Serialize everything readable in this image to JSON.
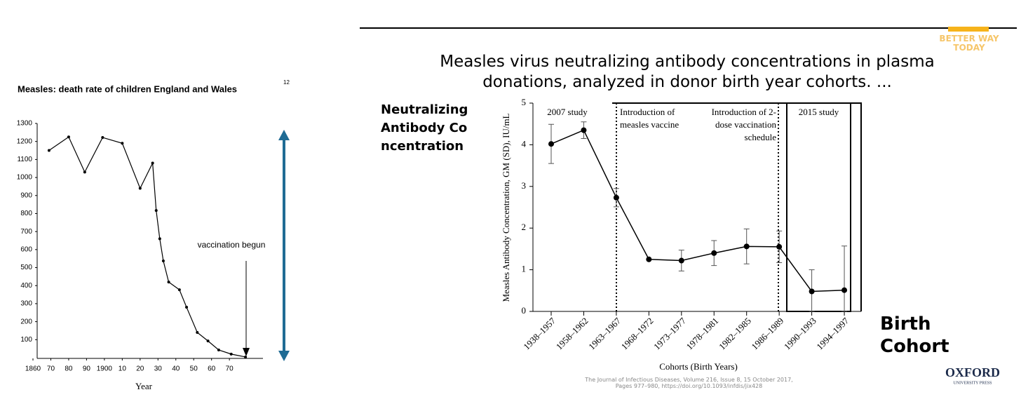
{
  "chart_data": [
    {
      "type": "line",
      "title": "Measles: death rate of children England and Wales",
      "title_note": "12",
      "x_label": "Year",
      "annotation": "vaccination begun",
      "x": [
        1869,
        1880,
        1889,
        1899,
        1910,
        1920,
        1927,
        1929,
        1931,
        1933,
        1936,
        1942,
        1946,
        1952,
        1958,
        1964,
        1971,
        1979
      ],
      "values": [
        1150,
        1225,
        1030,
        1222,
        1190,
        940,
        1080,
        817,
        660,
        537,
        420,
        377,
        280,
        140,
        93,
        43,
        20,
        4
      ],
      "color": "#000000",
      "xlim": [
        1860,
        1988
      ],
      "xticks": [
        1860,
        {
          "value": 1870,
          "label": "70"
        },
        {
          "value": 1880,
          "label": "80"
        },
        {
          "value": 1890,
          "label": "90"
        },
        1900,
        {
          "value": 1910,
          "label": "10"
        },
        {
          "value": 1920,
          "label": "20"
        },
        {
          "value": 1930,
          "label": "30"
        },
        {
          "value": 1940,
          "label": "40"
        },
        {
          "value": 1950,
          "label": "50"
        },
        {
          "value": 1960,
          "label": "60"
        },
        {
          "value": 1970,
          "label": "70"
        }
      ],
      "ylim": [
        0,
        1300
      ],
      "yticks": [
        100,
        200,
        300,
        400,
        500,
        600,
        700,
        800,
        900,
        1000,
        1100,
        1200,
        1300
      ]
    },
    {
      "type": "errorline",
      "title": "Measles virus neutralizing antibody concentrations in plasma donations, analyzed in donor birth year cohorts. ...",
      "x_label": "Cohorts (Birth Years)",
      "y_label": "Measles Antibody Concentration, GM (SD), IU/mL",
      "categories": [
        "1938–1957",
        "1958–1962",
        "1963–1967",
        "1968–1972",
        "1973–1977",
        "1978–1981",
        "1982–1985",
        "1986–1989",
        "1990–1993",
        "1994–1997"
      ],
      "values": [
        4.02,
        4.35,
        2.73,
        1.25,
        1.22,
        1.4,
        1.56,
        1.55,
        0.48,
        0.51
      ],
      "errors": [
        0.47,
        0.2,
        0.22,
        0,
        0.25,
        0.3,
        0.42,
        0.38,
        0.52,
        1.06
      ],
      "color": "#000000",
      "annotations": [
        "2007 study",
        "Introduction of measles vaccine",
        "Introduction of 2-dose vaccination schedule",
        "2015 study"
      ],
      "ylim": [
        0,
        5
      ],
      "yticks": [
        0,
        1,
        2,
        3,
        4,
        5
      ]
    }
  ],
  "side_label": "Neutralizing Antibody Concentration",
  "x_emphasis": "Birth Cohort",
  "citation": "The Journal of Infectious Diseases, Volume 216, Issue 8, 15 October 2017, Pages 977–980, https://doi.org/10.1093/infdis/jix428",
  "publisher": "OXFORD",
  "publisher_sub": "UNIVERSITY PRESS",
  "logo": "BETTER WAY TODAY"
}
